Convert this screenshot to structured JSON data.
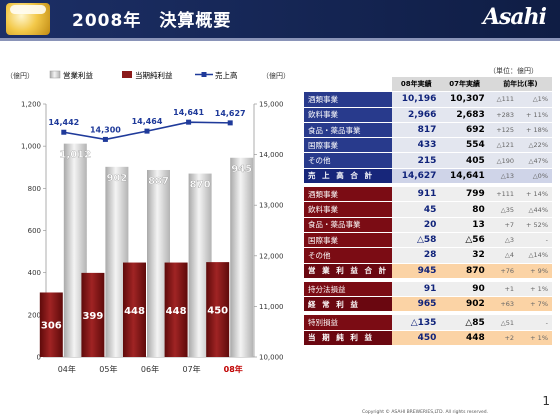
{
  "header": {
    "title": "2008年　決算概要",
    "logo": "Asahi"
  },
  "chart_data": {
    "type": "bar",
    "categories": [
      "04年",
      "05年",
      "06年",
      "07年",
      "08年"
    ],
    "left_unit": "（億円）",
    "right_unit": "（億円）",
    "ylim": [
      0,
      1200
    ],
    "y2lim": [
      10000,
      15000
    ],
    "yticks": [
      "0",
      "200",
      "400",
      "600",
      "800",
      "1,000",
      "1,200"
    ],
    "y2ticks": [
      "10,000",
      "11,000",
      "12,000",
      "13,000",
      "14,000",
      "15,000"
    ],
    "legend_position": "top",
    "series": [
      {
        "name": "営業利益",
        "type": "bar",
        "axis": "left",
        "color": "#c8c8c8",
        "values": [
          1012,
          902,
          887,
          870,
          945
        ],
        "labels": [
          "1,012",
          "902",
          "887",
          "870",
          "945"
        ]
      },
      {
        "name": "当期純利益",
        "type": "bar",
        "axis": "left",
        "color": "#8b1a1a",
        "values": [
          306,
          399,
          448,
          448,
          450
        ],
        "labels": [
          "306",
          "399",
          "448",
          "448",
          "450"
        ]
      },
      {
        "name": "売上高",
        "type": "line",
        "axis": "right",
        "color": "#1f3a9a",
        "values": [
          14442,
          14300,
          14464,
          14641,
          14627
        ],
        "labels": [
          "14,442",
          "14,300",
          "14,464",
          "14,641",
          "14,627"
        ]
      }
    ]
  },
  "table": {
    "unit": "（単位：億円）",
    "headers": [
      "08年実績",
      "07年実績",
      "前年比(率)"
    ],
    "sales_rows": [
      {
        "label": "酒類事業",
        "v08": "10,196",
        "v07": "10,307",
        "chg": "△111",
        "pct": "△1%"
      },
      {
        "label": "飲料事業",
        "v08": "2,966",
        "v07": "2,683",
        "chg": "+283",
        "pct": "+ 11%"
      },
      {
        "label": "食品・薬品事業",
        "v08": "817",
        "v07": "692",
        "chg": "+125",
        "pct": "+ 18%"
      },
      {
        "label": "国際事業",
        "v08": "433",
        "v07": "554",
        "chg": "△121",
        "pct": "△22%"
      },
      {
        "label": "その他",
        "v08": "215",
        "v07": "405",
        "chg": "△190",
        "pct": "△47%"
      }
    ],
    "sales_total": {
      "label": "売 上 高 合 計",
      "v08": "14,627",
      "v07": "14,641",
      "chg": "△13",
      "pct": "△0%"
    },
    "op_rows": [
      {
        "label": "酒類事業",
        "v08": "911",
        "v07": "799",
        "chg": "+111",
        "pct": "+ 14%"
      },
      {
        "label": "飲料事業",
        "v08": "45",
        "v07": "80",
        "chg": "△35",
        "pct": "△44%"
      },
      {
        "label": "食品・薬品事業",
        "v08": "20",
        "v07": "13",
        "chg": "+7",
        "pct": "+ 52%"
      },
      {
        "label": "国際事業",
        "v08": "△58",
        "v07": "△56",
        "chg": "△3",
        "pct": "-"
      },
      {
        "label": "その他",
        "v08": "28",
        "v07": "32",
        "chg": "△4",
        "pct": "△14%"
      }
    ],
    "op_total": {
      "label": "営 業 利 益 合 計",
      "v08": "945",
      "v07": "870",
      "chg": "+76",
      "pct": "+ 9%"
    },
    "equity_row": {
      "label": "持分法損益",
      "v08": "91",
      "v07": "90",
      "chg": "+1",
      "pct": "+ 1%"
    },
    "ordinary_total": {
      "label": "経 常 利 益",
      "v08": "965",
      "v07": "902",
      "chg": "+63",
      "pct": "+ 7%"
    },
    "special_row": {
      "label": "特別損益",
      "v08": "△135",
      "v07": "△85",
      "chg": "△51",
      "pct": "-"
    },
    "net_total": {
      "label": "当 期 純 利 益",
      "v08": "450",
      "v07": "448",
      "chg": "+2",
      "pct": "+ 1%"
    }
  },
  "footer": {
    "copyright": "Copyright © ASAHI BREWERIES,LTD. All rights reserved.",
    "page": "1"
  }
}
